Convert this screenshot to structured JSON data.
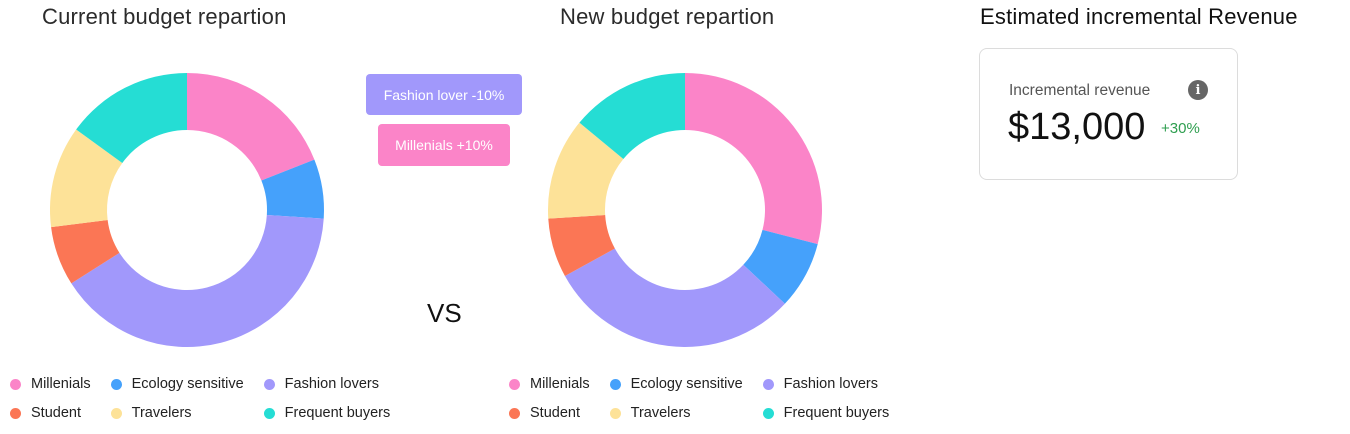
{
  "titles": {
    "current": "Current budget repartion",
    "new": "New budget repartion",
    "revenue": "Estimated incremental Revenue"
  },
  "tags": {
    "fashion": "Fashion lover -10%",
    "millenials": "Millenials +10%"
  },
  "vs": "VS",
  "revenue_card": {
    "label": "Incremental revenue",
    "value": "$13,000",
    "delta": "+30%",
    "icon": "info-icon"
  },
  "colors": {
    "Millenials": "#fb84c8",
    "Ecology sensitive": "#45a1fb",
    "Fashion lovers": "#a198fb",
    "Student": "#fb7655",
    "Travelers": "#fde298",
    "Frequent buyers": "#25ddd4"
  },
  "legend": [
    "Millenials",
    "Ecology sensitive",
    "Fashion lovers",
    "Student",
    "Travelers",
    "Frequent buyers"
  ],
  "chart_data": [
    {
      "type": "pie",
      "title": "Current budget repartion",
      "donut": true,
      "legend_position": "bottom",
      "labels": [
        "Millenials",
        "Ecology sensitive",
        "Fashion lovers",
        "Student",
        "Travelers",
        "Frequent buyers"
      ],
      "values": [
        19,
        7,
        40,
        7,
        12,
        15
      ]
    },
    {
      "type": "pie",
      "title": "New budget repartion",
      "donut": true,
      "legend_position": "bottom",
      "labels": [
        "Millenials",
        "Ecology sensitive",
        "Fashion lovers",
        "Student",
        "Travelers",
        "Frequent buyers"
      ],
      "values": [
        29,
        8,
        30,
        7,
        12,
        14
      ]
    }
  ]
}
